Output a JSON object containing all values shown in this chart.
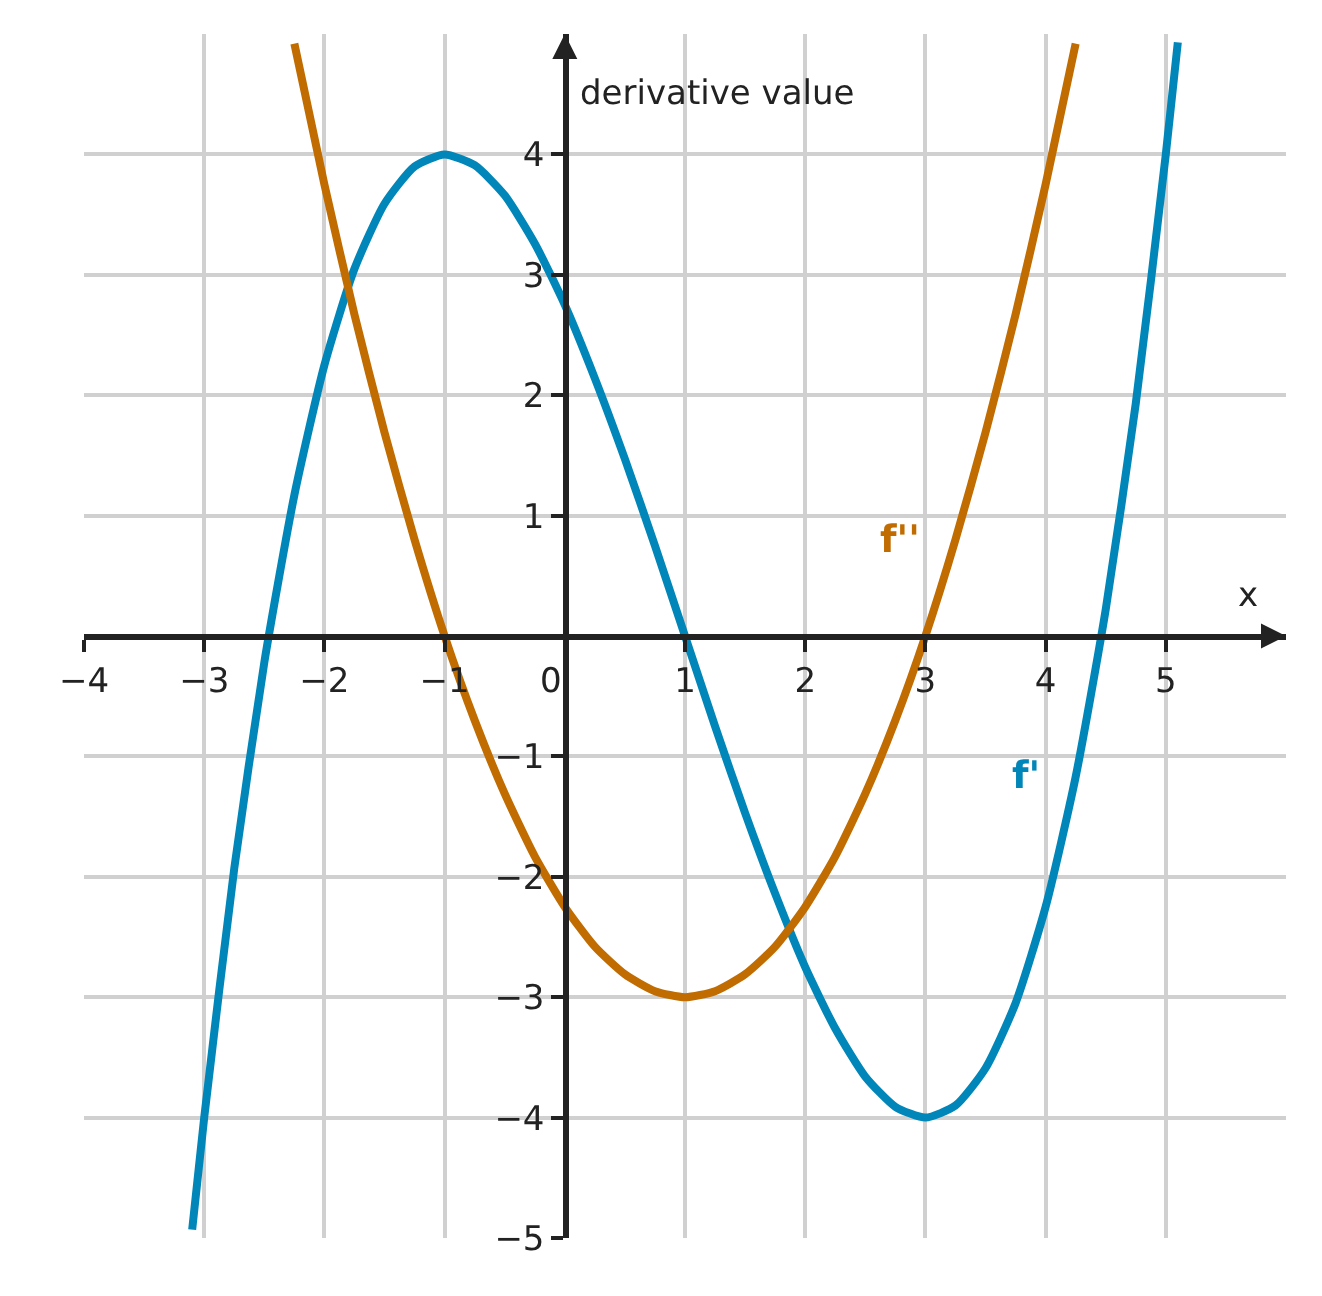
{
  "chart_data": {
    "type": "line",
    "xlabel": "x",
    "ylabel": "derivative value",
    "xlim": [
      -4,
      6
    ],
    "ylim": [
      -5,
      5
    ],
    "xticks": [
      {
        "value": -4,
        "label": "−4"
      },
      {
        "value": -3,
        "label": "−3"
      },
      {
        "value": -2,
        "label": "−2"
      },
      {
        "value": -1,
        "label": "−1"
      },
      0,
      1,
      2,
      3,
      4,
      5
    ],
    "yticks": [
      {
        "value": -5,
        "label": "−5"
      },
      {
        "value": -4,
        "label": "−4"
      },
      {
        "value": -3,
        "label": "−3"
      },
      {
        "value": -2,
        "label": "−2"
      },
      {
        "value": -1,
        "label": "−1"
      },
      1,
      2,
      3,
      4
    ],
    "grid": true,
    "legend": false,
    "marker": "none",
    "line_style": "solid",
    "series": [
      {
        "name": "f'",
        "color": "#0086b8",
        "x": [
          -3.1,
          -3,
          -2.75,
          -2.5,
          -2.25,
          -2,
          -1.75,
          -1.5,
          -1.25,
          -1,
          -0.75,
          -0.5,
          -0.25,
          0,
          0.25,
          0.5,
          0.75,
          1,
          1.25,
          1.5,
          1.75,
          2,
          2.25,
          2.5,
          2.75,
          3,
          3.25,
          3.5,
          3.75,
          4,
          4.25,
          4.5,
          4.75,
          5,
          5.1
        ],
        "values": [
          -4.93,
          -4,
          -1.93,
          -0.22,
          1.17,
          2.25,
          3.05,
          3.59,
          3.9,
          4,
          3.91,
          3.66,
          3.26,
          2.75,
          2.14,
          1.47,
          0.75,
          0,
          -0.75,
          -1.47,
          -2.14,
          -2.75,
          -3.26,
          -3.66,
          -3.91,
          -4,
          -3.9,
          -3.59,
          -3.05,
          -2.25,
          -1.17,
          0.22,
          1.93,
          4,
          4.93
        ]
      },
      {
        "name": "f''",
        "color": "#c06c00",
        "x": [
          -2.25,
          -2,
          -1.75,
          -1.5,
          -1.25,
          -1,
          -0.75,
          -0.5,
          -0.25,
          0,
          0.25,
          0.5,
          0.75,
          1,
          1.25,
          1.5,
          1.75,
          2,
          2.25,
          2.5,
          2.75,
          3,
          3.25,
          3.5,
          3.75,
          4,
          4.25
        ],
        "values": [
          4.92,
          3.75,
          2.67,
          1.69,
          0.8,
          0,
          -0.7,
          -1.31,
          -1.83,
          -2.25,
          -2.58,
          -2.81,
          -2.95,
          -3,
          -2.95,
          -2.81,
          -2.58,
          -2.25,
          -1.83,
          -1.31,
          -0.7,
          0,
          0.8,
          1.69,
          2.67,
          3.75,
          4.92
        ]
      }
    ]
  }
}
